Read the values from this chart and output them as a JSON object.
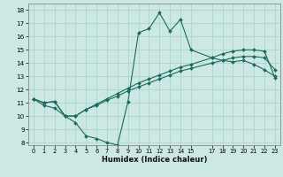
{
  "title": "",
  "xlabel": "Humidex (Indice chaleur)",
  "ylabel": "",
  "xlim": [
    -0.5,
    23.5
  ],
  "ylim": [
    7.8,
    18.5
  ],
  "yticks": [
    8,
    9,
    10,
    11,
    12,
    13,
    14,
    15,
    16,
    17,
    18
  ],
  "xticks": [
    0,
    1,
    2,
    3,
    4,
    5,
    6,
    7,
    8,
    9,
    10,
    11,
    12,
    13,
    14,
    15,
    17,
    18,
    19,
    20,
    21,
    22,
    23
  ],
  "bg_color": "#cce8e4",
  "line_color": "#1a6b5a",
  "grid_color": "#aacfca",
  "line1_x": [
    0,
    1,
    2,
    3,
    4,
    5,
    6,
    7,
    8,
    9,
    10,
    11,
    12,
    13,
    14,
    15,
    17,
    18,
    19,
    20,
    21,
    22,
    23
  ],
  "line1_y": [
    11.3,
    10.8,
    10.6,
    10.0,
    9.5,
    8.5,
    8.3,
    8.0,
    7.8,
    11.1,
    16.3,
    16.6,
    17.8,
    16.4,
    17.3,
    15.0,
    14.4,
    14.2,
    14.1,
    14.2,
    13.9,
    13.5,
    13.0
  ],
  "line2_x": [
    0,
    1,
    2,
    3,
    4,
    5,
    6,
    7,
    8,
    9,
    10,
    11,
    12,
    13,
    14,
    15,
    17,
    18,
    19,
    20,
    21,
    22,
    23
  ],
  "line2_y": [
    11.3,
    11.0,
    11.1,
    10.0,
    10.0,
    10.5,
    10.8,
    11.2,
    11.5,
    11.9,
    12.2,
    12.5,
    12.8,
    13.1,
    13.4,
    13.6,
    14.0,
    14.2,
    14.4,
    14.5,
    14.5,
    14.4,
    13.5
  ],
  "line3_x": [
    0,
    1,
    2,
    3,
    4,
    5,
    6,
    7,
    8,
    9,
    10,
    11,
    12,
    13,
    14,
    15,
    17,
    18,
    19,
    20,
    21,
    22,
    23
  ],
  "line3_y": [
    11.3,
    11.0,
    11.1,
    10.0,
    10.0,
    10.5,
    10.9,
    11.3,
    11.7,
    12.1,
    12.5,
    12.8,
    13.1,
    13.4,
    13.7,
    13.9,
    14.4,
    14.7,
    14.9,
    15.0,
    15.0,
    14.9,
    12.9
  ]
}
